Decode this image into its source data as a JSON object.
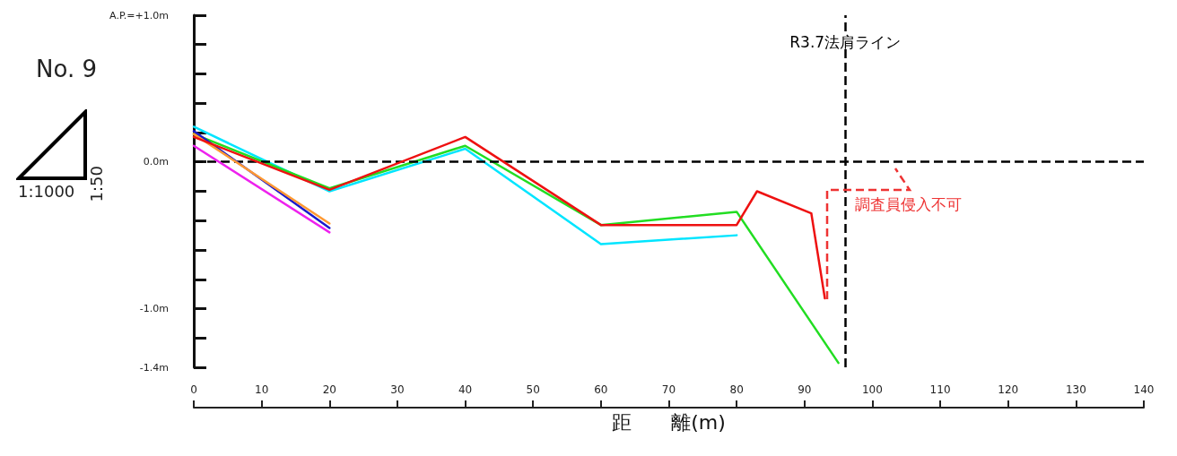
{
  "chart_data": {
    "type": "line",
    "xlabel": "距　　離(m)",
    "xlim": [
      0,
      140
    ],
    "xticks": [
      0,
      10,
      20,
      30,
      40,
      50,
      60,
      70,
      80,
      90,
      100,
      110,
      120,
      130,
      140
    ],
    "ylim": [
      -1.4,
      1.0
    ],
    "yticks": [
      {
        "value": 1.0,
        "label": "A.P.=+1.0m"
      },
      {
        "value": 0.8,
        "label": null
      },
      {
        "value": 0.6,
        "label": null
      },
      {
        "value": 0.4,
        "label": null
      },
      {
        "value": 0.2,
        "label": null
      },
      {
        "value": 0,
        "label": "0.0m"
      },
      {
        "value": -0.2,
        "label": null
      },
      {
        "value": -0.4,
        "label": null
      },
      {
        "value": -0.6,
        "label": null
      },
      {
        "value": -0.8,
        "label": null
      },
      {
        "value": -1.0,
        "label": "-1.0m"
      },
      {
        "value": -1.2,
        "label": null
      },
      {
        "value": -1.4,
        "label": "-1.4m"
      }
    ],
    "series": [
      {
        "color": "#00e5ff",
        "x": [
          0,
          20,
          40,
          60,
          80
        ],
        "values": [
          0.24,
          -0.2,
          0.09,
          -0.56,
          -0.5
        ]
      },
      {
        "color": "#22dd22",
        "x": [
          0,
          20,
          40,
          60,
          80,
          95
        ],
        "values": [
          0.19,
          -0.18,
          0.11,
          -0.43,
          -0.34,
          -1.37
        ]
      },
      {
        "color": "#1a1acc",
        "x": [
          0,
          20
        ],
        "values": [
          0.21,
          -0.45
        ]
      },
      {
        "color": "#ff9933",
        "x": [
          0,
          20
        ],
        "values": [
          0.19,
          -0.42
        ]
      },
      {
        "color": "#ee22ee",
        "x": [
          0,
          20
        ],
        "values": [
          0.11,
          -0.48
        ]
      },
      {
        "color": "#ee1111",
        "x": [
          0,
          20,
          40,
          60,
          80,
          83,
          91,
          93
        ],
        "values": [
          0.17,
          -0.19,
          0.17,
          -0.43,
          -0.43,
          -0.2,
          -0.35,
          -0.93
        ]
      }
    ],
    "ref_lines": [
      {
        "axis": "y",
        "value": 0,
        "label": null,
        "color": "#000000",
        "line_style": "dashed"
      },
      {
        "axis": "x",
        "value": 96,
        "label": "R3.7法肩ライン",
        "color": "#000000",
        "line_style": "dashed"
      }
    ],
    "annotations": [
      "No. 9",
      "1:50",
      "1:1000",
      "調査員侵入不可"
    ],
    "grid": false,
    "marker": "none",
    "line_style": "solid"
  }
}
